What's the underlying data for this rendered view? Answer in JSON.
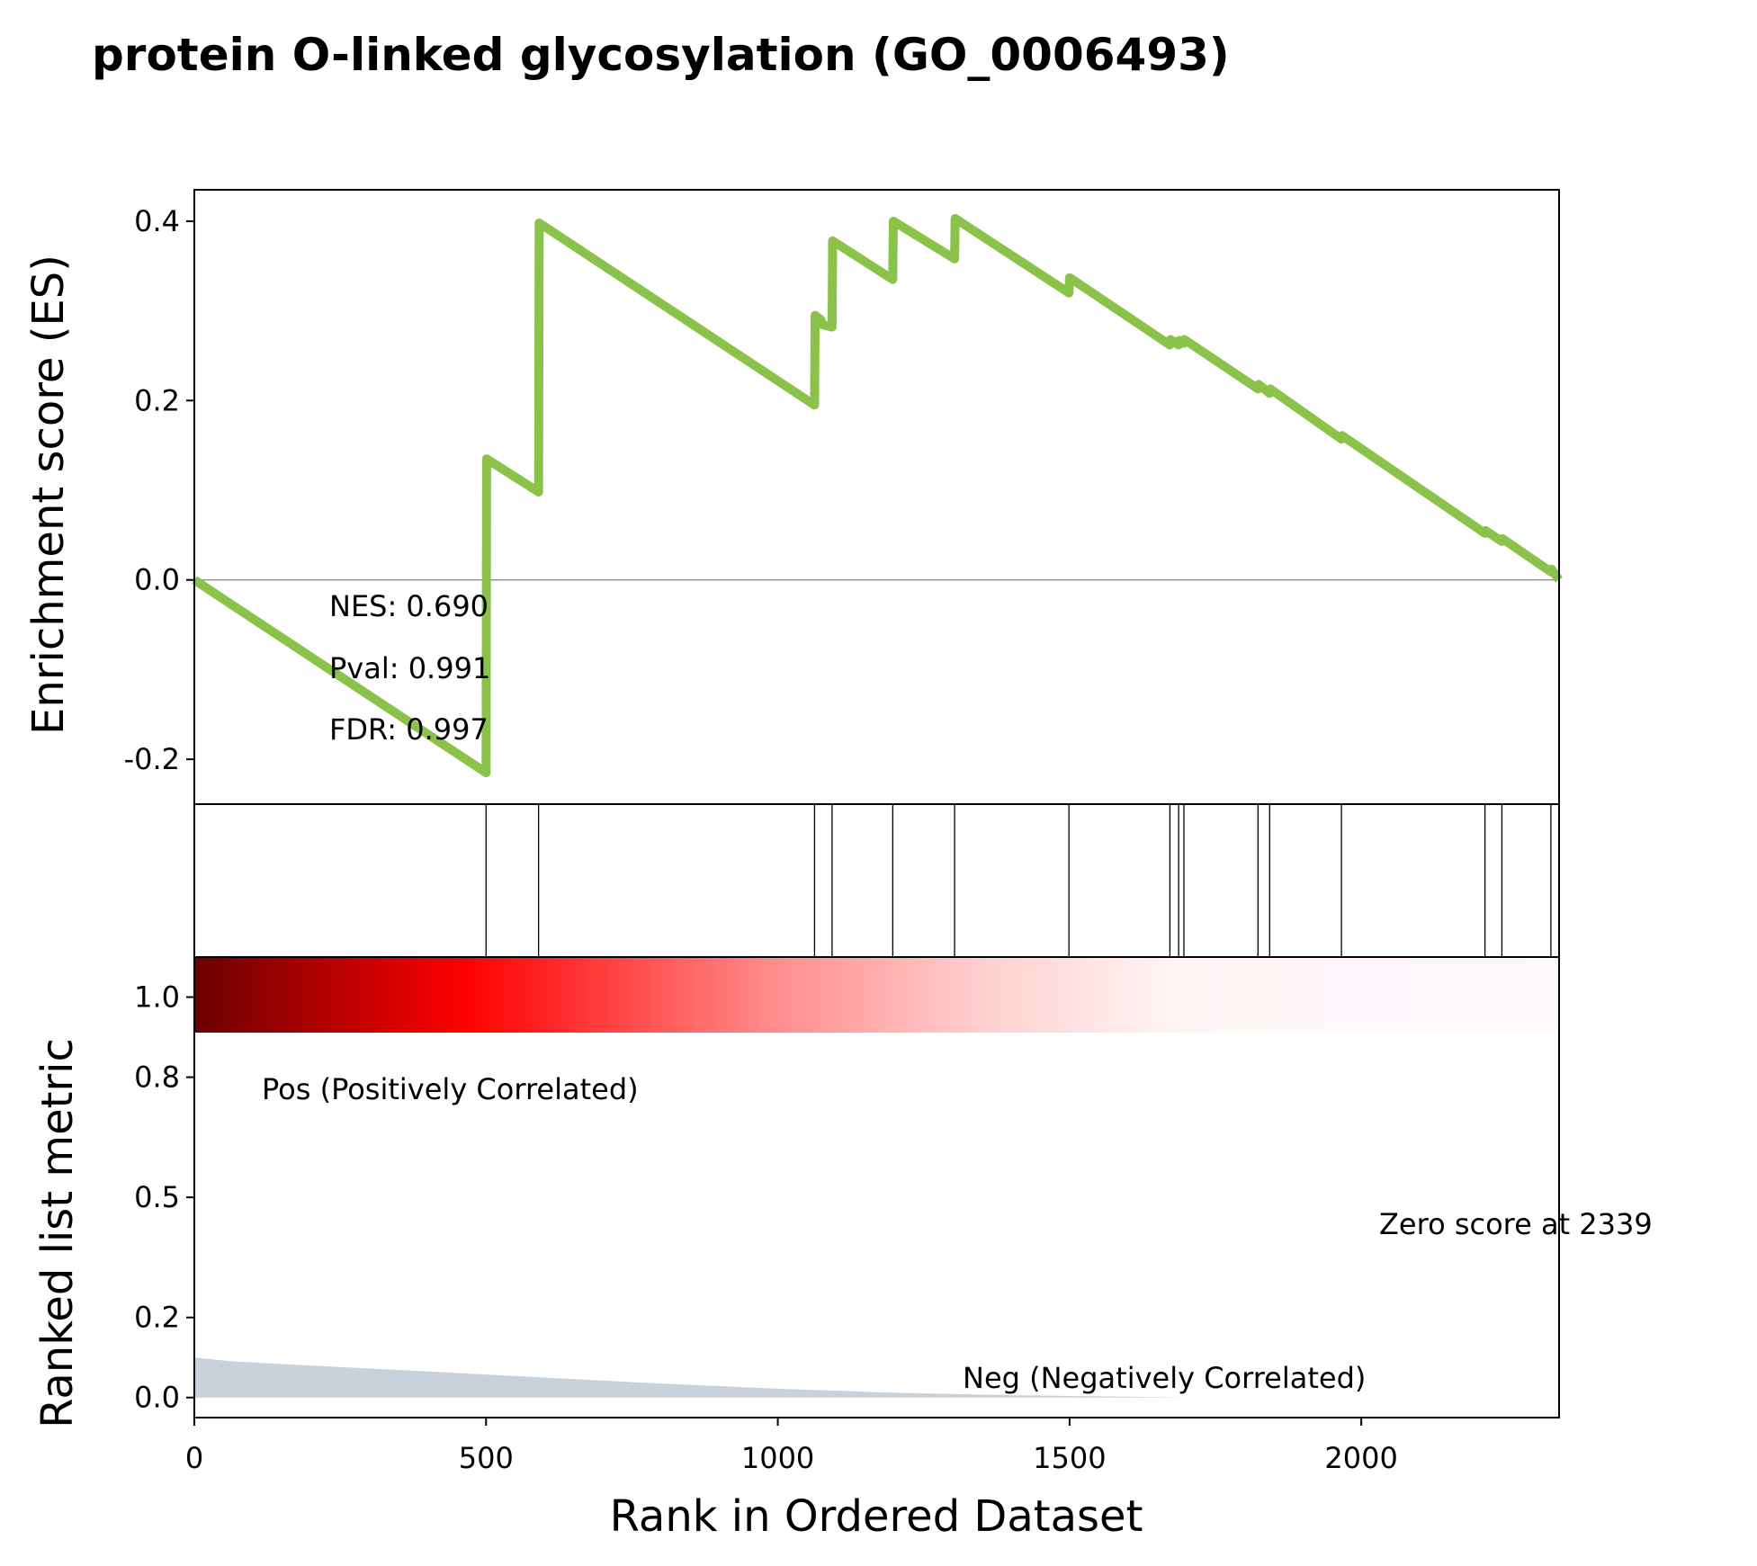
{
  "chart_data": {
    "type": "line",
    "title": "protein O-linked glycosylation (GO_0006493)",
    "es_panel": {
      "ylabel": "Enrichment score (ES)",
      "yticks": [
        0.4,
        0.2,
        0.0,
        -0.2
      ],
      "ytick_labels": [
        "0.4",
        "0.2",
        "0.0",
        "-0.2"
      ],
      "ylim": [
        -0.25,
        0.435
      ],
      "line_color": "#8bc34a",
      "series": [
        {
          "x": [
            0,
            500,
            501,
            590,
            591,
            1063,
            1064,
            1074,
            1075,
            1093,
            1094,
            1197,
            1198,
            1303,
            1304,
            1499,
            1500,
            1672,
            1673,
            1687,
            1688,
            1696,
            1697,
            1823,
            1824,
            1843,
            1844,
            1966,
            1967,
            2212,
            2213,
            2241,
            2242,
            2325,
            2326,
            2339
          ],
          "y": [
            0.0,
            -0.215,
            0.135,
            0.098,
            0.398,
            0.195,
            0.295,
            0.29,
            0.285,
            0.282,
            0.378,
            0.335,
            0.4,
            0.358,
            0.403,
            0.32,
            0.337,
            0.262,
            0.268,
            0.262,
            0.267,
            0.264,
            0.268,
            0.213,
            0.218,
            0.208,
            0.213,
            0.157,
            0.161,
            0.052,
            0.055,
            0.043,
            0.046,
            0.009,
            0.012,
            0.0
          ]
        }
      ],
      "annotations": [
        "NES: 0.690",
        "Pval: 0.991",
        "FDR: 0.997"
      ]
    },
    "hits": [
      500,
      590,
      1063,
      1093,
      1197,
      1303,
      1499,
      1672,
      1687,
      1696,
      1823,
      1843,
      1966,
      2212,
      2241,
      2325,
      2339
    ],
    "metric_panel": {
      "ylabel": "Ranked list metric",
      "yticks": [
        0.0,
        0.2,
        0.5,
        0.8,
        1.0
      ],
      "ytick_labels": [
        "0.0",
        "0.2",
        "0.5",
        "0.8",
        "1.0"
      ],
      "ylim": [
        -0.05,
        1.1
      ],
      "fill_color": "#c7d2db",
      "x": [
        0,
        70,
        200,
        400,
        600,
        800,
        1000,
        1200,
        1400,
        1600,
        1700,
        2000,
        2339
      ],
      "values": [
        0.1,
        0.09,
        0.08,
        0.065,
        0.05,
        0.035,
        0.022,
        0.012,
        0.006,
        0.002,
        0.0,
        0.0,
        0.0
      ],
      "pos_label": "Pos (Positively Correlated)",
      "neg_label": "Neg (Negatively Correlated)",
      "zero_label": "Zero score at 2339",
      "pos_color": "#ff0000",
      "neg_color": "#0000ff"
    },
    "xlabel": "Rank in Ordered Dataset",
    "xticks": [
      0,
      500,
      1000,
      1500,
      2000
    ],
    "xtick_labels": [
      "0",
      "500",
      "1000",
      "1500",
      "2000"
    ],
    "xlim": [
      0,
      2339
    ]
  }
}
